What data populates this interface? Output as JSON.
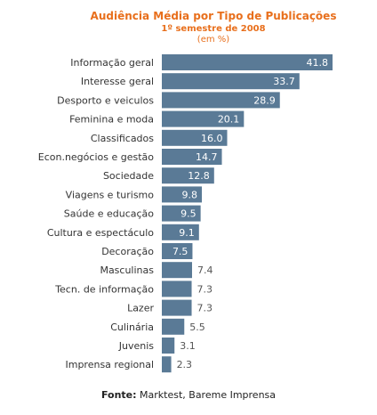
{
  "chart_data": {
    "type": "bar",
    "orientation": "horizontal",
    "title": "Audiência Média por Tipo de Publicações",
    "subtitle": "1º semestre de 2008",
    "unit": "(em %)",
    "categories": [
      "Informação geral",
      "Interesse geral",
      "Desporto e veiculos",
      "Feminina e moda",
      "Classificados",
      "Econ.negócios e gestão",
      "Sociedade",
      "Viagens e turismo",
      "Saúde e educação",
      "Cultura e espectáculo",
      "Decoração",
      "Masculinas",
      "Tecn. de informação",
      "Lazer",
      "Culinária",
      "Juvenis",
      "Imprensa regional"
    ],
    "values": [
      41.8,
      33.7,
      28.9,
      20.1,
      16.0,
      14.7,
      12.8,
      9.8,
      9.5,
      9.1,
      7.5,
      7.4,
      7.3,
      7.3,
      5.5,
      3.1,
      2.3
    ],
    "value_labels": [
      "41.8",
      "33.7",
      "28.9",
      "20.1",
      "16.0",
      "14.7",
      "12.8",
      "9.8",
      "9.5",
      "9.1",
      "7.5",
      "7.4",
      "7.3",
      "7.3",
      "5.5",
      "3.1",
      "2.3"
    ],
    "xlim": [
      0,
      45
    ],
    "grid": false,
    "bar_color": "#5a7a96"
  },
  "source": {
    "label": "Fonte:",
    "text": "Marktest, Bareme Imprensa"
  }
}
